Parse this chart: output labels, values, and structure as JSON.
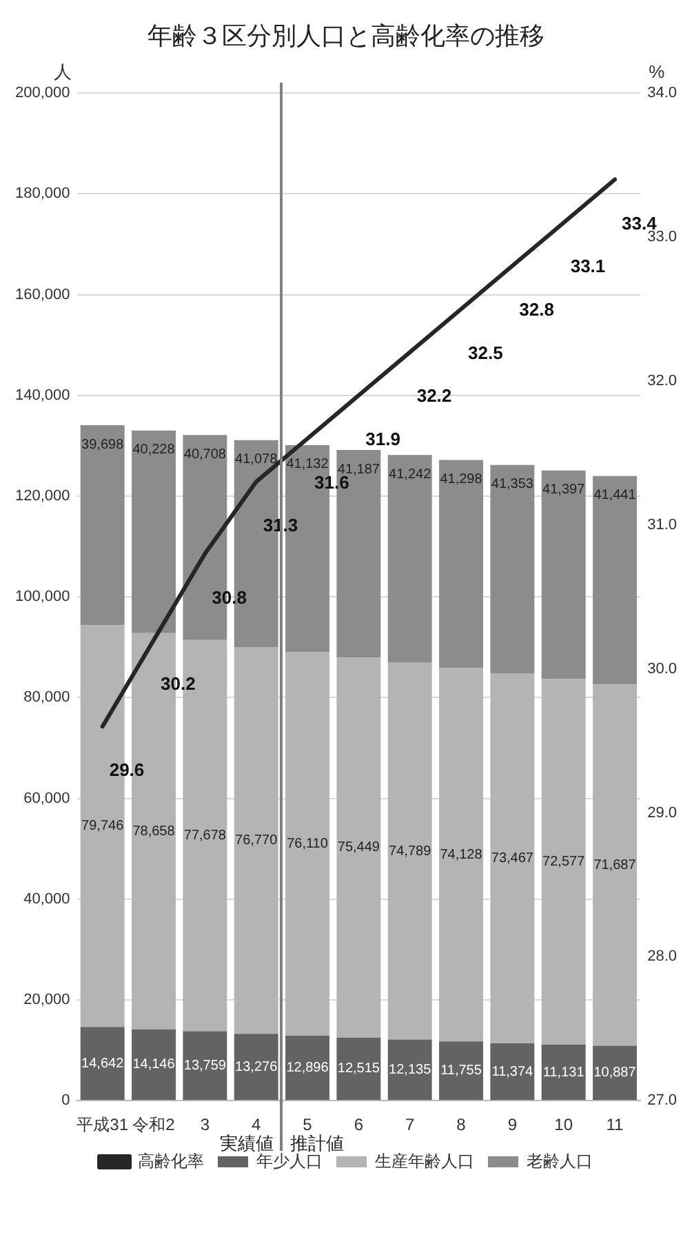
{
  "chart_data": {
    "type": "bar",
    "title": "年齢３区分別人口と高齢化率の推移",
    "ylabel": "人",
    "y2label": "%",
    "categories": [
      "平成31",
      "令和2",
      "3",
      "4",
      "5",
      "6",
      "7",
      "8",
      "9",
      "10",
      "11"
    ],
    "stacked": true,
    "grid": "y",
    "legend": "bottom",
    "series": [
      {
        "name": "年少人口",
        "color": "#636363",
        "values": [
          14642,
          14146,
          13759,
          13276,
          12896,
          12515,
          12135,
          11755,
          11374,
          11131,
          10887
        ],
        "value_labels": [
          "14,642",
          "14,146",
          "13,759",
          "13,276",
          "12,896",
          "12,515",
          "12,135",
          "11,755",
          "11,374",
          "11,131",
          "10,887"
        ]
      },
      {
        "name": "生産年齢人口",
        "color": "#b4b4b4",
        "values": [
          79746,
          78658,
          77678,
          76770,
          76110,
          75449,
          74789,
          74128,
          73467,
          72577,
          71687
        ],
        "value_labels": [
          "79,746",
          "78,658",
          "77,678",
          "76,770",
          "76,110",
          "75,449",
          "74,789",
          "74,128",
          "73,467",
          "72,577",
          "71,687"
        ]
      },
      {
        "name": "老齢人口",
        "color": "#8c8c8c",
        "values": [
          39698,
          40228,
          40708,
          41078,
          41132,
          41187,
          41242,
          41298,
          41353,
          41397,
          41441
        ],
        "value_labels": [
          "39,698",
          "40,228",
          "40,708",
          "41,078",
          "41,132",
          "41,187",
          "41,242",
          "41,298",
          "41,353",
          "41,397",
          "41,441"
        ]
      },
      {
        "name": "高齢化率",
        "type": "line",
        "axis": "y2",
        "color": "#262626",
        "marker": "none",
        "values": [
          29.6,
          30.2,
          30.8,
          31.3,
          31.6,
          31.9,
          32.2,
          32.5,
          32.8,
          33.1,
          33.4
        ],
        "value_labels": [
          "29.6",
          "30.2",
          "30.8",
          "31.3",
          "31.6",
          "31.9",
          "32.2",
          "32.5",
          "32.8",
          "33.1",
          "33.4"
        ]
      }
    ],
    "ylim": [
      0,
      200000
    ],
    "yticks": [
      {
        "value": 0,
        "label": "0"
      },
      {
        "value": 20000,
        "label": "20,000"
      },
      {
        "value": 40000,
        "label": "40,000"
      },
      {
        "value": 60000,
        "label": "60,000"
      },
      {
        "value": 80000,
        "label": "80,000"
      },
      {
        "value": 100000,
        "label": "100,000"
      },
      {
        "value": 120000,
        "label": "120,000"
      },
      {
        "value": 140000,
        "label": "140,000"
      },
      {
        "value": 160000,
        "label": "160,000"
      },
      {
        "value": 180000,
        "label": "180,000"
      },
      {
        "value": 200000,
        "label": "200,000"
      }
    ],
    "y2lim": [
      27,
      34
    ],
    "y2ticks": [
      {
        "value": 27,
        "label": "27.0"
      },
      {
        "value": 28,
        "label": "28.0"
      },
      {
        "value": 29,
        "label": "29.0"
      },
      {
        "value": 30,
        "label": "30.0"
      },
      {
        "value": 31,
        "label": "31.0"
      },
      {
        "value": 32,
        "label": "32.0"
      },
      {
        "value": 33,
        "label": "33.0"
      },
      {
        "value": 34,
        "label": "34.0"
      }
    ],
    "annotations": [
      "実績値",
      "推計値"
    ]
  }
}
